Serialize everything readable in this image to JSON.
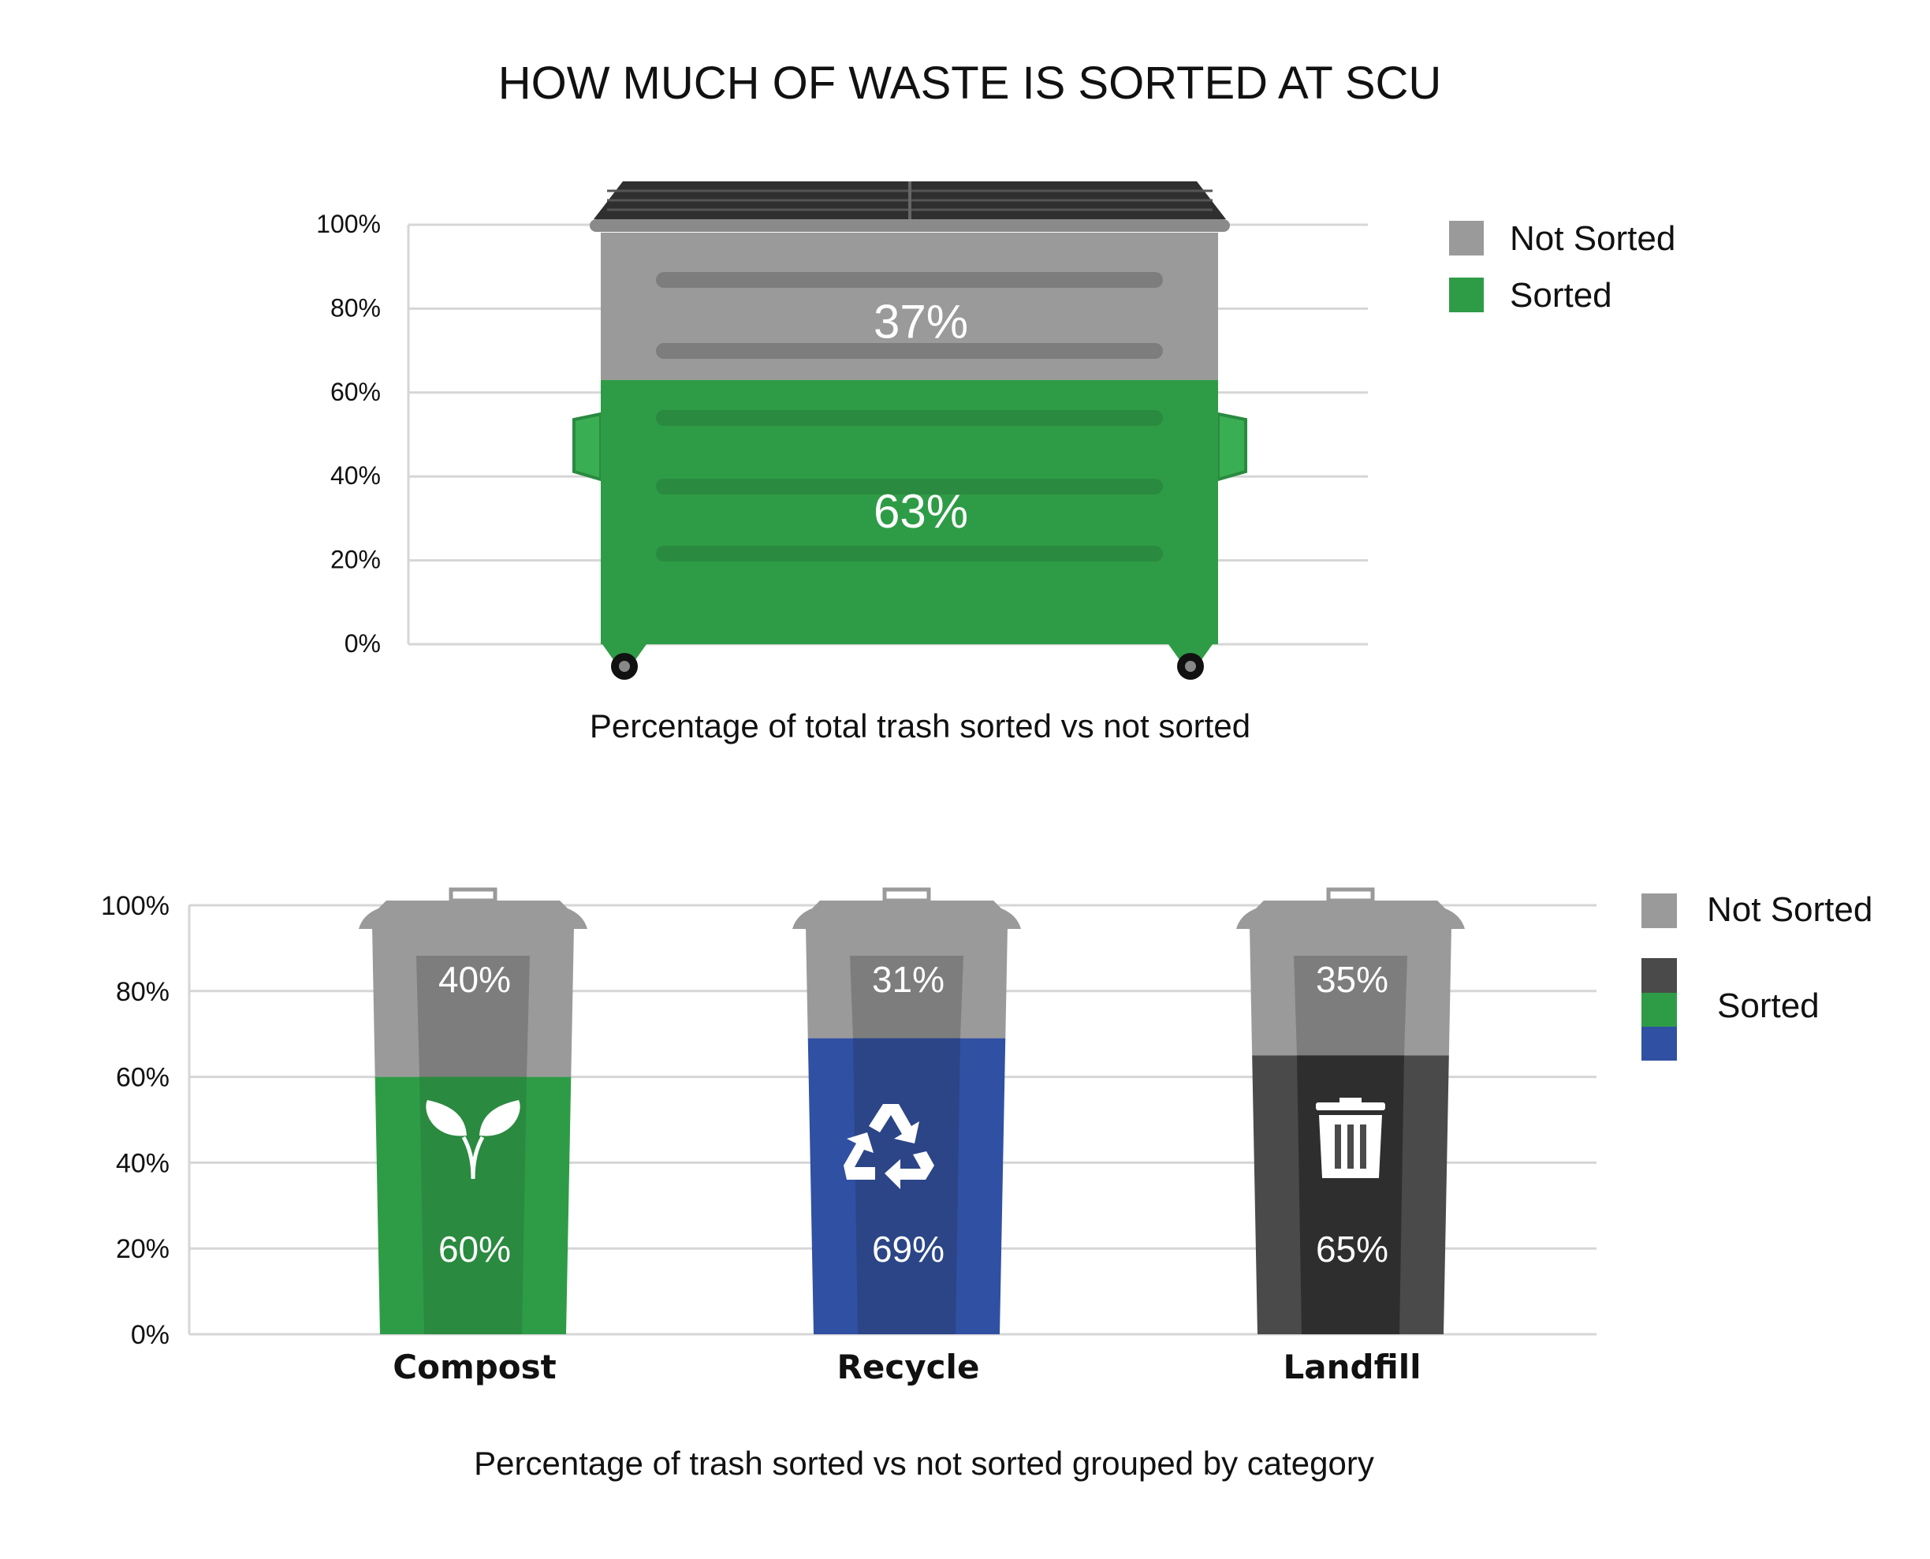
{
  "title": "HOW MUCH OF WASTE IS SORTED AT SCU",
  "colors": {
    "not_sorted": "#9a9a9a",
    "not_sorted_dark": "#7d7d7d",
    "sorted_green": "#2e9c46",
    "sorted_green_dark": "#2a8a40",
    "sorted_blue": "#3050a3",
    "sorted_blue_dark": "#2b4587",
    "sorted_black": "#4a4a4a",
    "sorted_black_dark": "#2e2e2e",
    "lid": "#2f2f2f",
    "grid": "#d6d6d6",
    "text": "#111111",
    "bar_text": "#ffffff"
  },
  "chart_data": [
    {
      "type": "bar",
      "stacked": true,
      "yticks": [
        "0%",
        "20%",
        "40%",
        "60%",
        "80%",
        "100%"
      ],
      "ylim": [
        0,
        100
      ],
      "categories": [
        ""
      ],
      "series": [
        {
          "name": "Sorted",
          "values": [
            63
          ],
          "label": "63%",
          "color": "#2e9c46"
        },
        {
          "name": "Not Sorted",
          "values": [
            37
          ],
          "label": "37%",
          "color": "#9a9a9a"
        }
      ],
      "legend": {
        "position": "top-right",
        "entries": [
          "Not Sorted",
          "Sorted"
        ]
      },
      "caption": "Percentage of total trash sorted vs not sorted",
      "icon": "dumpster-icon",
      "grid": true
    },
    {
      "type": "bar",
      "stacked": true,
      "yticks": [
        "0%",
        "20%",
        "40%",
        "60%",
        "80%",
        "100%"
      ],
      "ylim": [
        0,
        100
      ],
      "categories": [
        "Compost",
        "Recycle",
        "Landfill"
      ],
      "category_icons": [
        "leaf-icon",
        "recycle-icon",
        "trash-icon"
      ],
      "category_colors": [
        "#2e9c46",
        "#3050a3",
        "#4a4a4a"
      ],
      "series": [
        {
          "name": "Sorted",
          "values": [
            60,
            69,
            65
          ],
          "labels": [
            "60%",
            "69%",
            "65%"
          ]
        },
        {
          "name": "Not Sorted",
          "values": [
            40,
            31,
            35
          ],
          "labels": [
            "40%",
            "31%",
            "35%"
          ]
        }
      ],
      "legend": {
        "position": "right",
        "entries": [
          "Not Sorted",
          "Sorted"
        ]
      },
      "caption": "Percentage of trash sorted vs not sorted grouped by category",
      "icon": "trash-bin-icon",
      "grid": true
    }
  ]
}
